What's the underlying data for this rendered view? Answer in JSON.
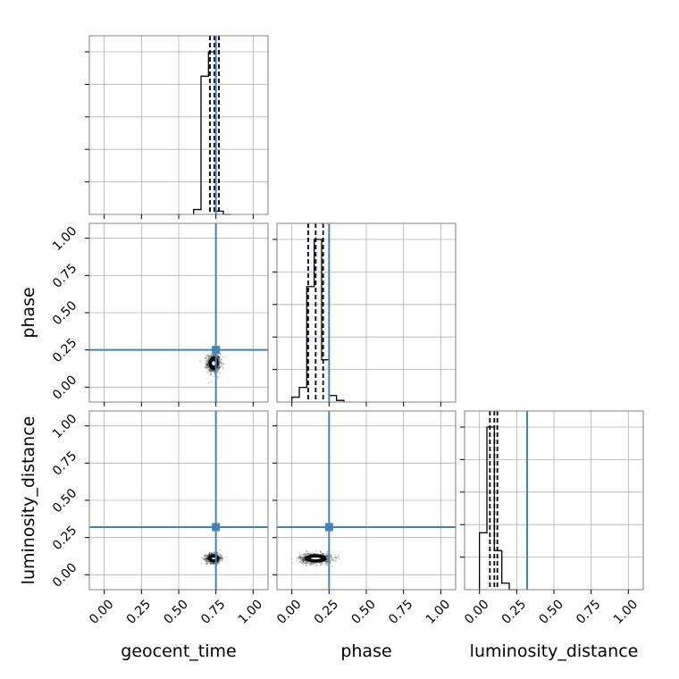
{
  "chart_data": {
    "type": "corner",
    "parameters": [
      "geocent_time",
      "phase",
      "luminosity_distance"
    ],
    "axis_range": [
      -0.1,
      1.1
    ],
    "ticks": [
      0.0,
      0.25,
      0.5,
      0.75,
      1.0
    ],
    "tick_labels": [
      "0.00",
      "0.25",
      "0.50",
      "0.75",
      "1.00"
    ],
    "truths": {
      "geocent_time": 0.75,
      "phase": 0.25,
      "luminosity_distance": 0.32
    },
    "truth_color": "#4682b4",
    "grid": true,
    "histograms": [
      {
        "parameter": "geocent_time",
        "bin_edges": [
          0.6,
          0.65,
          0.7,
          0.75,
          0.8,
          0.85
        ],
        "counts": [
          0.03,
          0.85,
          1.0,
          0.02,
          0.0
        ],
        "quantiles": [
          0.71,
          0.74,
          0.77
        ]
      },
      {
        "parameter": "phase",
        "bin_edges": [
          -0.0,
          0.05,
          0.1,
          0.15,
          0.2,
          0.25,
          0.3,
          0.35
        ],
        "counts": [
          0.03,
          0.09,
          0.71,
          1.0,
          0.26,
          0.04,
          0.01
        ],
        "quantiles": [
          0.11,
          0.16,
          0.21
        ]
      },
      {
        "parameter": "luminosity_distance",
        "bin_edges": [
          0.0,
          0.05,
          0.1,
          0.15,
          0.2,
          0.25
        ],
        "counts": [
          0.35,
          1.0,
          0.24,
          0.04,
          0.0
        ],
        "quantiles": [
          0.07,
          0.1,
          0.12
        ]
      }
    ],
    "joint": [
      {
        "x": "geocent_time",
        "y": "phase",
        "center": [
          0.735,
          0.16
        ],
        "spread": [
          0.025,
          0.035
        ]
      },
      {
        "x": "geocent_time",
        "y": "luminosity_distance",
        "center": [
          0.735,
          0.11
        ],
        "spread": [
          0.028,
          0.018
        ]
      },
      {
        "x": "phase",
        "y": "luminosity_distance",
        "center": [
          0.16,
          0.11
        ],
        "spread": [
          0.06,
          0.02
        ]
      }
    ]
  }
}
